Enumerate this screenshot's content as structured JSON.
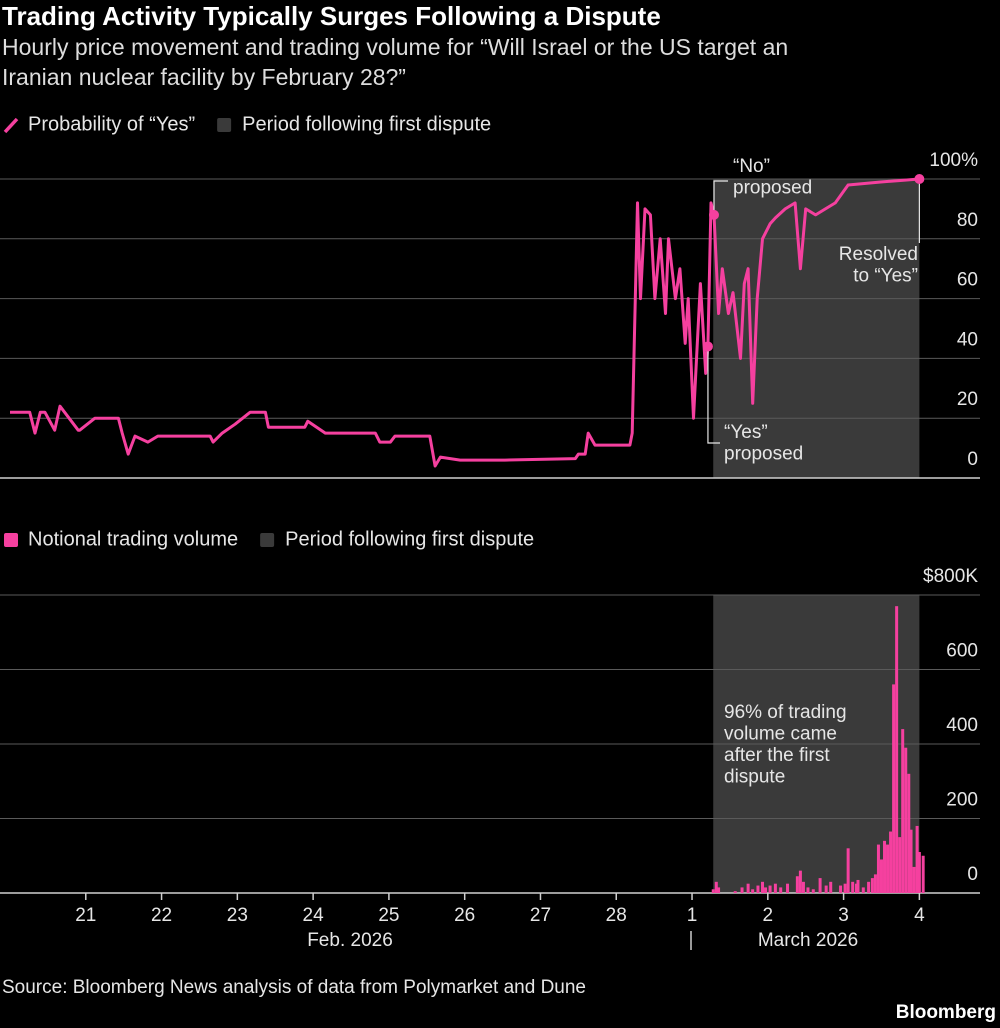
{
  "header": {
    "title": "Trading Activity Typically Surges Following a Dispute",
    "subtitle": [
      "Hourly price movement and trading volume for “Will Israel or the US target an",
      "Iranian nuclear facility by February 28?”"
    ]
  },
  "chart_data": [
    {
      "type": "line",
      "x": [
        0,
        0.26,
        0.33,
        0.4,
        0.46,
        0.59,
        0.66,
        0.9,
        0.92,
        1.12,
        1.43,
        1.48,
        1.56,
        1.65,
        1.82,
        1.95,
        2.64,
        2.68,
        2.8,
        2.97,
        3.17,
        3.37,
        3.41,
        3.89,
        3.93,
        4.16,
        4.82,
        4.88,
        5.02,
        5.08,
        5.54,
        5.61,
        5.68,
        5.94,
        6.53,
        7.46,
        7.5,
        7.59,
        7.63,
        7.72,
        8.18,
        8.21,
        8.28,
        8.32,
        8.38,
        8.45,
        8.51,
        8.58,
        8.65,
        8.69,
        8.78,
        8.84,
        8.91,
        8.95,
        9.02,
        9.07,
        9.11,
        9.18,
        9.21,
        9.25,
        9.29,
        9.35,
        9.4,
        9.48,
        9.54,
        9.64,
        9.69,
        9.74,
        9.8,
        9.86,
        9.93,
        10.03,
        10.1,
        10.23,
        10.36,
        10.43,
        10.5,
        10.63,
        10.76,
        10.89,
        11.06,
        11.49,
        11.75,
        12
      ],
      "series": [
        {
          "name": "Probability of “Yes”",
          "color": "#f5409f",
          "values": [
            22,
            22,
            15,
            22,
            22,
            16,
            24,
            16,
            16,
            20,
            20,
            15,
            8,
            14,
            12,
            14,
            14,
            12,
            15,
            18,
            22,
            22,
            17,
            17,
            19,
            15,
            15,
            12,
            12,
            14,
            14,
            4,
            7,
            6,
            6,
            6.5,
            8,
            8,
            15,
            11,
            11,
            15,
            92,
            60,
            90,
            88,
            60,
            80,
            55,
            80,
            60,
            70,
            45,
            60,
            20,
            45,
            65,
            35,
            44,
            92,
            88,
            55,
            70,
            55,
            62,
            40,
            65,
            70,
            25,
            60,
            80,
            85,
            87,
            90,
            92,
            70,
            90,
            88,
            90,
            92,
            98,
            99,
            99.5,
            100
          ]
        }
      ],
      "highlight": {
        "name": "Period following first dispute",
        "start": 9.28,
        "end": 12,
        "color": "#3a3a3a"
      },
      "xlim": [
        0,
        12.8
      ],
      "ylim": [
        0,
        100
      ],
      "yticks": [
        0,
        20,
        40,
        60,
        80,
        {
          "value": 100,
          "label": "100%"
        }
      ],
      "grid": true,
      "annotations": [
        {
          "x": 9.29,
          "y": 88,
          "text": [
            "“No”",
            "proposed"
          ]
        },
        {
          "x": 9.21,
          "y": 44,
          "text": [
            "“Yes”",
            "proposed"
          ]
        },
        {
          "x": 12,
          "y": 100,
          "text": [
            "Resolved",
            "to “Yes”"
          ]
        }
      ]
    },
    {
      "type": "bar",
      "x": [
        9.28,
        9.32,
        9.35,
        9.57,
        9.66,
        9.74,
        9.8,
        9.87,
        9.93,
        9.97,
        10.03,
        10.1,
        10.17,
        10.26,
        10.39,
        10.43,
        10.47,
        10.53,
        10.6,
        10.69,
        10.77,
        10.83,
        10.96,
        11.02,
        11.06,
        11.12,
        11.17,
        11.19,
        11.26,
        11.33,
        11.38,
        11.42,
        11.46,
        11.5,
        11.54,
        11.58,
        11.62,
        11.66,
        11.7,
        11.74,
        11.78,
        11.82,
        11.86,
        11.89,
        11.93,
        11.97,
        12.0,
        12.05
      ],
      "series": [
        {
          "name": "Notional trading volume",
          "color": "#f5409f",
          "values": [
            10000,
            30000,
            15000,
            5000,
            15000,
            25000,
            10000,
            20000,
            30000,
            15000,
            20000,
            25000,
            15000,
            25000,
            45000,
            60000,
            30000,
            15000,
            10000,
            40000,
            20000,
            30000,
            20000,
            25000,
            120000,
            30000,
            25000,
            35000,
            15000,
            30000,
            40000,
            50000,
            130000,
            90000,
            140000,
            130000,
            165000,
            560000,
            770000,
            150000,
            440000,
            390000,
            320000,
            170000,
            70000,
            180000,
            110000,
            100000
          ]
        }
      ],
      "highlight": {
        "name": "Period following first dispute",
        "start": 9.28,
        "end": 12,
        "color": "#3a3a3a"
      },
      "xlim": [
        0,
        12.8
      ],
      "ylim": [
        0,
        800000
      ],
      "yticks": [
        0,
        {
          "value": 200000,
          "label": "200"
        },
        {
          "value": 400000,
          "label": "400"
        },
        {
          "value": 600000,
          "label": "600"
        },
        {
          "value": 800000,
          "label": "$800K"
        }
      ],
      "xticks": [
        {
          "value": 1,
          "label": "21"
        },
        {
          "value": 2,
          "label": "22"
        },
        {
          "value": 3,
          "label": "23"
        },
        {
          "value": 4,
          "label": "24"
        },
        {
          "value": 5,
          "label": "25"
        },
        {
          "value": 6,
          "label": "26"
        },
        {
          "value": 7,
          "label": "27"
        },
        {
          "value": 8,
          "label": "28"
        },
        {
          "value": 9,
          "label": "1"
        },
        {
          "value": 10,
          "label": "2"
        },
        {
          "value": 11,
          "label": "3"
        },
        {
          "value": 12,
          "label": "4"
        }
      ],
      "x_groups": [
        "Feb. 2026",
        "March 2026"
      ],
      "grid": true,
      "annotations": [
        {
          "text": [
            "96% of trading",
            "volume came",
            "after the first",
            "dispute"
          ]
        }
      ]
    }
  ],
  "footer": {
    "source": "Source: Bloomberg News analysis of data from Polymarket and Dune",
    "brand": "Bloomberg"
  }
}
